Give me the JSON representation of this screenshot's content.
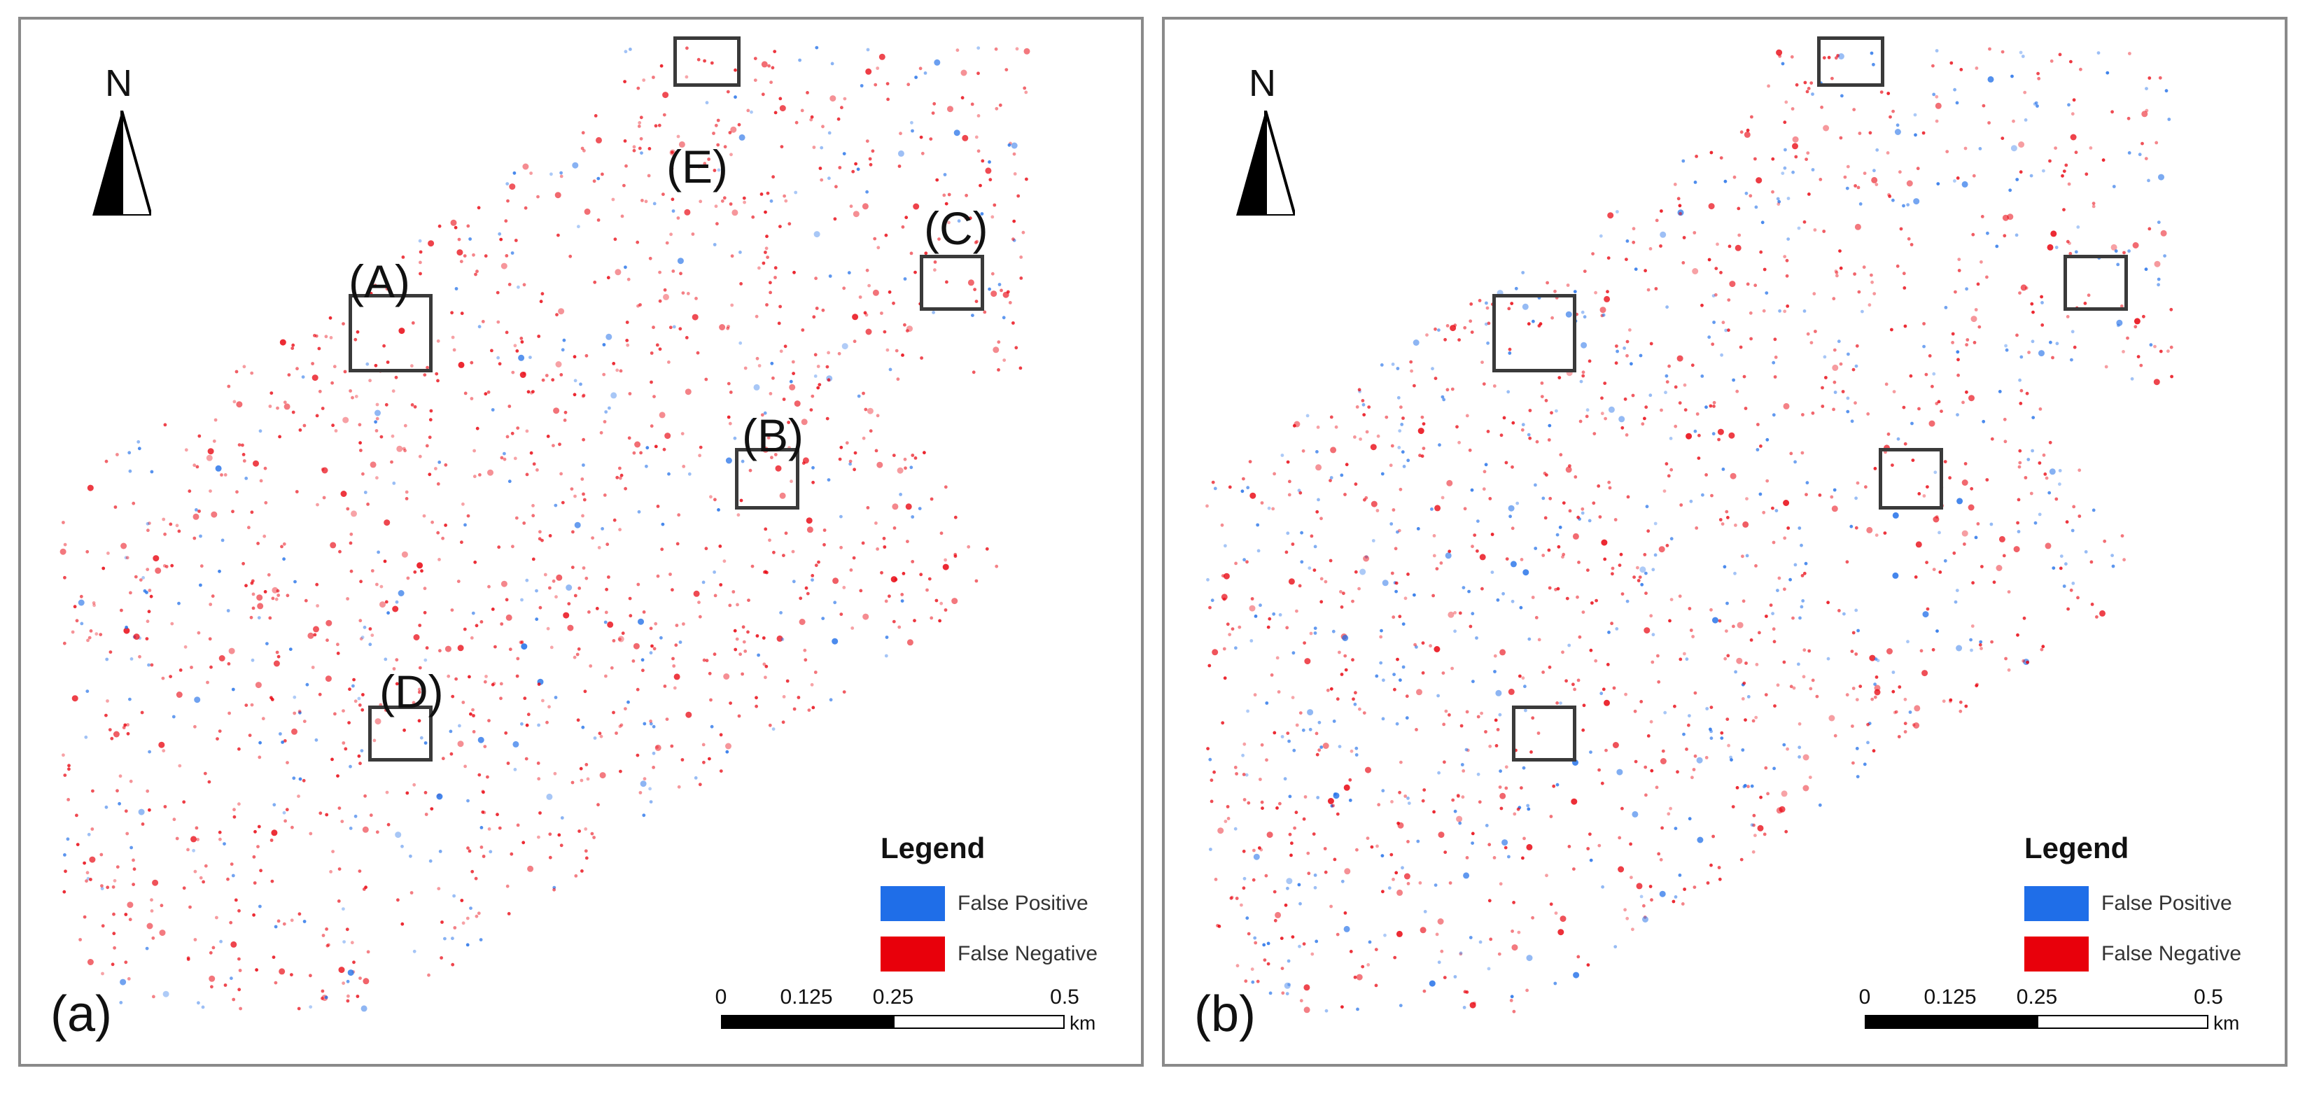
{
  "panels": [
    {
      "id": "a",
      "label": "(a)",
      "north": "N",
      "region_labels": [
        "(A)",
        "(B)",
        "(C)",
        "(D)",
        "(E)"
      ],
      "legend": {
        "title": "Legend",
        "items": [
          {
            "label": "False Positive",
            "color": "#1f6ee8"
          },
          {
            "label": "False Negative",
            "color": "#e8000b"
          }
        ]
      },
      "scale": {
        "ticks": [
          "0",
          "0.125",
          "0.25",
          "0.5"
        ],
        "unit": "km"
      }
    },
    {
      "id": "b",
      "label": "(b)",
      "north": "N",
      "region_labels": [],
      "legend": {
        "title": "Legend",
        "items": [
          {
            "label": "False Positive",
            "color": "#1f6ee8"
          },
          {
            "label": "False Negative",
            "color": "#e8000b"
          }
        ]
      },
      "scale": {
        "ticks": [
          "0",
          "0.125",
          "0.25",
          "0.5"
        ],
        "unit": "km"
      }
    }
  ]
}
